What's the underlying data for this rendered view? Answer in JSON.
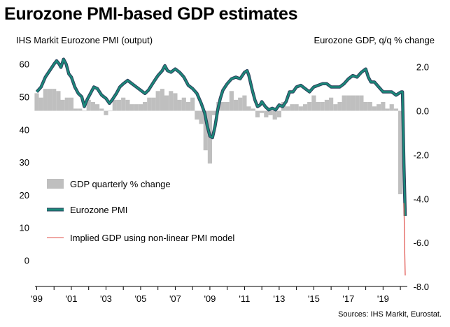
{
  "chart_data": {
    "type": "bar",
    "title": "Eurozone PMI-based GDP estimates",
    "left_axis_label": "IHS Markit Eurozone PMI (output)",
    "right_axis_label": "Eurozone GDP, q/q % change",
    "source": "Sources: IHS Markit, Eurostat.",
    "left_ylim": [
      -8,
      62.5
    ],
    "right_ylim": [
      -8,
      2.5
    ],
    "left_ticks": [
      "60",
      "50",
      "40",
      "30",
      "20",
      "10",
      "0"
    ],
    "right_ticks": [
      "2.0",
      "0.0",
      "-2.0",
      "-4.0",
      "-6.0",
      "-8.0"
    ],
    "x_ticks": [
      "'99",
      "'01",
      "'03",
      "'05",
      "'07",
      "'09",
      "'11",
      "'13",
      "'15",
      "'17",
      "'19"
    ],
    "legend": {
      "gdp": "GDP quarterly % change",
      "pmi": "Eurozone PMI",
      "implied": "Implied GDP using non-linear PMI model"
    },
    "colors": {
      "gdp": "#bfbfbf",
      "pmi": "#1a8a7a",
      "pmi_outline": "#2e3f5c",
      "implied": "#e0504a"
    },
    "gdp_quarterly": [
      {
        "x": 1999.0,
        "v": 0.8
      },
      {
        "x": 1999.25,
        "v": 0.6
      },
      {
        "x": 1999.5,
        "v": 1.0
      },
      {
        "x": 1999.75,
        "v": 1.0
      },
      {
        "x": 2000.0,
        "v": 1.0
      },
      {
        "x": 2000.25,
        "v": 0.9
      },
      {
        "x": 2000.5,
        "v": 0.5
      },
      {
        "x": 2000.75,
        "v": 0.6
      },
      {
        "x": 2001.0,
        "v": 0.6
      },
      {
        "x": 2001.25,
        "v": 0.1
      },
      {
        "x": 2001.5,
        "v": 0.1
      },
      {
        "x": 2001.75,
        "v": 0.0
      },
      {
        "x": 2002.0,
        "v": 0.5
      },
      {
        "x": 2002.25,
        "v": 0.4
      },
      {
        "x": 2002.5,
        "v": 0.3
      },
      {
        "x": 2002.75,
        "v": 0.1
      },
      {
        "x": 2003.0,
        "v": -0.2
      },
      {
        "x": 2003.25,
        "v": 0.0
      },
      {
        "x": 2003.5,
        "v": 0.5
      },
      {
        "x": 2003.75,
        "v": 0.5
      },
      {
        "x": 2004.0,
        "v": 0.6
      },
      {
        "x": 2004.25,
        "v": 0.5
      },
      {
        "x": 2004.5,
        "v": 0.3
      },
      {
        "x": 2004.75,
        "v": 0.3
      },
      {
        "x": 2005.0,
        "v": 0.3
      },
      {
        "x": 2005.25,
        "v": 0.4
      },
      {
        "x": 2005.5,
        "v": 0.6
      },
      {
        "x": 2005.75,
        "v": 0.6
      },
      {
        "x": 2006.0,
        "v": 0.9
      },
      {
        "x": 2006.25,
        "v": 1.0
      },
      {
        "x": 2006.5,
        "v": 0.7
      },
      {
        "x": 2006.75,
        "v": 0.9
      },
      {
        "x": 2007.0,
        "v": 0.8
      },
      {
        "x": 2007.25,
        "v": 0.5
      },
      {
        "x": 2007.5,
        "v": 0.6
      },
      {
        "x": 2007.75,
        "v": 0.4
      },
      {
        "x": 2008.0,
        "v": 0.6
      },
      {
        "x": 2008.25,
        "v": -0.4
      },
      {
        "x": 2008.5,
        "v": -0.6
      },
      {
        "x": 2008.75,
        "v": -1.8
      },
      {
        "x": 2009.0,
        "v": -2.4
      },
      {
        "x": 2009.25,
        "v": -0.2
      },
      {
        "x": 2009.5,
        "v": 0.4
      },
      {
        "x": 2009.75,
        "v": 0.4
      },
      {
        "x": 2010.0,
        "v": 0.4
      },
      {
        "x": 2010.25,
        "v": 0.9
      },
      {
        "x": 2010.5,
        "v": 0.5
      },
      {
        "x": 2010.75,
        "v": 0.6
      },
      {
        "x": 2011.0,
        "v": 0.7
      },
      {
        "x": 2011.25,
        "v": 0.2
      },
      {
        "x": 2011.5,
        "v": 0.1
      },
      {
        "x": 2011.75,
        "v": -0.3
      },
      {
        "x": 2012.0,
        "v": -0.1
      },
      {
        "x": 2012.25,
        "v": -0.3
      },
      {
        "x": 2012.5,
        "v": -0.2
      },
      {
        "x": 2012.75,
        "v": -0.4
      },
      {
        "x": 2013.0,
        "v": -0.3
      },
      {
        "x": 2013.25,
        "v": 0.4
      },
      {
        "x": 2013.5,
        "v": 0.2
      },
      {
        "x": 2013.75,
        "v": 0.3
      },
      {
        "x": 2014.0,
        "v": 0.3
      },
      {
        "x": 2014.25,
        "v": 0.2
      },
      {
        "x": 2014.5,
        "v": 0.3
      },
      {
        "x": 2014.75,
        "v": 0.4
      },
      {
        "x": 2015.0,
        "v": 0.7
      },
      {
        "x": 2015.25,
        "v": 0.4
      },
      {
        "x": 2015.5,
        "v": 0.4
      },
      {
        "x": 2015.75,
        "v": 0.5
      },
      {
        "x": 2016.0,
        "v": 0.6
      },
      {
        "x": 2016.25,
        "v": 0.3
      },
      {
        "x": 2016.5,
        "v": 0.4
      },
      {
        "x": 2016.75,
        "v": 0.7
      },
      {
        "x": 2017.0,
        "v": 0.7
      },
      {
        "x": 2017.25,
        "v": 0.7
      },
      {
        "x": 2017.5,
        "v": 0.7
      },
      {
        "x": 2017.75,
        "v": 0.7
      },
      {
        "x": 2018.0,
        "v": 0.4
      },
      {
        "x": 2018.25,
        "v": 0.4
      },
      {
        "x": 2018.5,
        "v": 0.2
      },
      {
        "x": 2018.75,
        "v": 0.3
      },
      {
        "x": 2019.0,
        "v": 0.4
      },
      {
        "x": 2019.25,
        "v": 0.1
      },
      {
        "x": 2019.5,
        "v": 0.3
      },
      {
        "x": 2019.75,
        "v": 0.1
      },
      {
        "x": 2020.0,
        "v": -3.8
      }
    ],
    "pmi": [
      {
        "x": 1999.0,
        "y": 51.5
      },
      {
        "x": 1999.25,
        "y": 53
      },
      {
        "x": 1999.5,
        "y": 56
      },
      {
        "x": 1999.75,
        "y": 58
      },
      {
        "x": 2000.0,
        "y": 60
      },
      {
        "x": 2000.15,
        "y": 61
      },
      {
        "x": 2000.3,
        "y": 60
      },
      {
        "x": 2000.4,
        "y": 59
      },
      {
        "x": 2000.55,
        "y": 61.5
      },
      {
        "x": 2000.7,
        "y": 60
      },
      {
        "x": 2000.85,
        "y": 57
      },
      {
        "x": 2001.0,
        "y": 56
      },
      {
        "x": 2001.2,
        "y": 53
      },
      {
        "x": 2001.4,
        "y": 51
      },
      {
        "x": 2001.6,
        "y": 50
      },
      {
        "x": 2001.75,
        "y": 47
      },
      {
        "x": 2001.9,
        "y": 49
      },
      {
        "x": 2002.1,
        "y": 51
      },
      {
        "x": 2002.3,
        "y": 53
      },
      {
        "x": 2002.5,
        "y": 52.5
      },
      {
        "x": 2002.75,
        "y": 50.5
      },
      {
        "x": 2003.0,
        "y": 49.5
      },
      {
        "x": 2003.2,
        "y": 48
      },
      {
        "x": 2003.35,
        "y": 49
      },
      {
        "x": 2003.6,
        "y": 51
      },
      {
        "x": 2003.8,
        "y": 53
      },
      {
        "x": 2004.0,
        "y": 54
      },
      {
        "x": 2004.25,
        "y": 55
      },
      {
        "x": 2004.5,
        "y": 54
      },
      {
        "x": 2004.75,
        "y": 53
      },
      {
        "x": 2005.0,
        "y": 52
      },
      {
        "x": 2005.25,
        "y": 51
      },
      {
        "x": 2005.45,
        "y": 52
      },
      {
        "x": 2005.75,
        "y": 54.5
      },
      {
        "x": 2006.0,
        "y": 56.5
      },
      {
        "x": 2006.25,
        "y": 58
      },
      {
        "x": 2006.4,
        "y": 59.5
      },
      {
        "x": 2006.55,
        "y": 58
      },
      {
        "x": 2006.75,
        "y": 57.5
      },
      {
        "x": 2007.0,
        "y": 58.5
      },
      {
        "x": 2007.25,
        "y": 57.5
      },
      {
        "x": 2007.5,
        "y": 56
      },
      {
        "x": 2007.75,
        "y": 53.5
      },
      {
        "x": 2008.0,
        "y": 52.5
      },
      {
        "x": 2008.25,
        "y": 51
      },
      {
        "x": 2008.5,
        "y": 48
      },
      {
        "x": 2008.7,
        "y": 45
      },
      {
        "x": 2008.85,
        "y": 41
      },
      {
        "x": 2009.0,
        "y": 38
      },
      {
        "x": 2009.15,
        "y": 37.5
      },
      {
        "x": 2009.3,
        "y": 41
      },
      {
        "x": 2009.45,
        "y": 46
      },
      {
        "x": 2009.6,
        "y": 49.5
      },
      {
        "x": 2009.75,
        "y": 52
      },
      {
        "x": 2010.0,
        "y": 54
      },
      {
        "x": 2010.25,
        "y": 55.5
      },
      {
        "x": 2010.5,
        "y": 56
      },
      {
        "x": 2010.75,
        "y": 55.5
      },
      {
        "x": 2011.0,
        "y": 57.5
      },
      {
        "x": 2011.15,
        "y": 58
      },
      {
        "x": 2011.25,
        "y": 56.5
      },
      {
        "x": 2011.45,
        "y": 52
      },
      {
        "x": 2011.6,
        "y": 49
      },
      {
        "x": 2011.75,
        "y": 47
      },
      {
        "x": 2011.9,
        "y": 47.5
      },
      {
        "x": 2012.0,
        "y": 48.5
      },
      {
        "x": 2012.2,
        "y": 47
      },
      {
        "x": 2012.4,
        "y": 46
      },
      {
        "x": 2012.6,
        "y": 46.5
      },
      {
        "x": 2012.8,
        "y": 46
      },
      {
        "x": 2013.0,
        "y": 47.5
      },
      {
        "x": 2013.2,
        "y": 47
      },
      {
        "x": 2013.4,
        "y": 48.5
      },
      {
        "x": 2013.6,
        "y": 51.5
      },
      {
        "x": 2013.8,
        "y": 51.5
      },
      {
        "x": 2014.0,
        "y": 53
      },
      {
        "x": 2014.25,
        "y": 53.5
      },
      {
        "x": 2014.5,
        "y": 52.5
      },
      {
        "x": 2014.75,
        "y": 51.5
      },
      {
        "x": 2015.0,
        "y": 53
      },
      {
        "x": 2015.25,
        "y": 53.5
      },
      {
        "x": 2015.5,
        "y": 54
      },
      {
        "x": 2015.75,
        "y": 54
      },
      {
        "x": 2016.0,
        "y": 53
      },
      {
        "x": 2016.25,
        "y": 53
      },
      {
        "x": 2016.5,
        "y": 53
      },
      {
        "x": 2016.75,
        "y": 54
      },
      {
        "x": 2017.0,
        "y": 55.5
      },
      {
        "x": 2017.25,
        "y": 56.5
      },
      {
        "x": 2017.5,
        "y": 56
      },
      {
        "x": 2017.75,
        "y": 57.5
      },
      {
        "x": 2018.0,
        "y": 58.5
      },
      {
        "x": 2018.15,
        "y": 56
      },
      {
        "x": 2018.3,
        "y": 54.5
      },
      {
        "x": 2018.5,
        "y": 54.5
      },
      {
        "x": 2018.75,
        "y": 53
      },
      {
        "x": 2019.0,
        "y": 51.5
      },
      {
        "x": 2019.25,
        "y": 51.5
      },
      {
        "x": 2019.5,
        "y": 51.5
      },
      {
        "x": 2019.75,
        "y": 50.5
      },
      {
        "x": 2019.9,
        "y": 51
      },
      {
        "x": 2020.05,
        "y": 51.5
      },
      {
        "x": 2020.12,
        "y": 51.5
      },
      {
        "x": 2020.2,
        "y": 29.7
      },
      {
        "x": 2020.28,
        "y": 13.6
      }
    ],
    "implied_gdp": [
      {
        "x": 2020.2,
        "v": -4.2
      },
      {
        "x": 2020.28,
        "v": -7.5
      }
    ]
  }
}
